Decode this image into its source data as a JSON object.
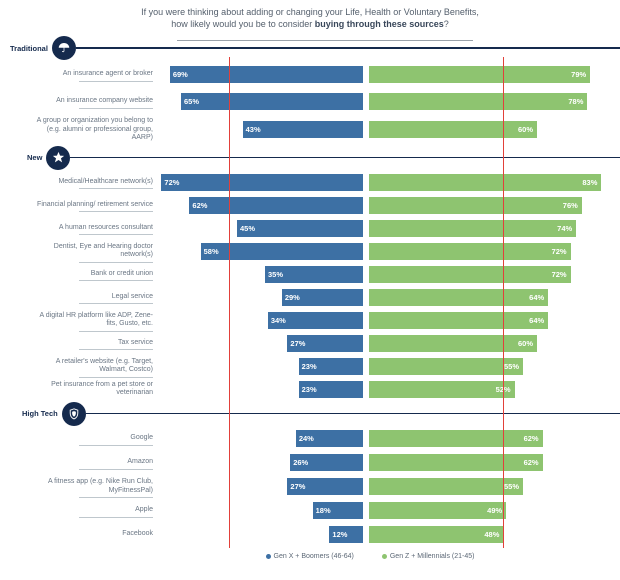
{
  "title": {
    "line1": "If you were thinking about adding or changing your Life, Health or Voluntary Benefits,",
    "line2_prefix": "how likely would you be to consider ",
    "line2_bold": "buying through these sources",
    "line2_suffix": "?"
  },
  "colors": {
    "genx_blue": "#3d70a4",
    "genz_green": "#8ec470",
    "navy": "#152a4d",
    "red_reference": "#e2403a",
    "label_gray": "#6a7684",
    "divider_gray": "#bfc7cd"
  },
  "legend": [
    {
      "label": "Gen X  +  Boomers (46-64)",
      "color": "#3d70a4"
    },
    {
      "label": "Gen Z  +  Millennials (21-45)",
      "color": "#8ec470"
    }
  ],
  "sections": [
    {
      "name": "Traditional",
      "icon": "umbrella-icon",
      "rows": [
        {
          "label": "An insurance agent or broker",
          "genx": 69,
          "genz": 79
        },
        {
          "label": "An insurance company website",
          "genx": 65,
          "genz": 78
        },
        {
          "label": "A group or organization you belong to (e.g. alumni or professional group, AARP)",
          "genx": 43,
          "genz": 60
        }
      ]
    },
    {
      "name": "New",
      "icon": "star-icon",
      "rows": [
        {
          "label": "Medical/Healthcare network(s)",
          "genx": 72,
          "genz": 83
        },
        {
          "label": "Financial planning/ retirement service",
          "genx": 62,
          "genz": 76
        },
        {
          "label": "A human resources consultant",
          "genx": 45,
          "genz": 74
        },
        {
          "label": "Dentist, Eye and Hearing doctor network(s)",
          "genx": 58,
          "genz": 72
        },
        {
          "label": "Bank or credit union",
          "genx": 35,
          "genz": 72
        },
        {
          "label": "Legal service",
          "genx": 29,
          "genz": 64
        },
        {
          "label": "A digital HR platform like ADP, Zene-fits, Gusto, etc.",
          "genx": 34,
          "genz": 64
        },
        {
          "label": "Tax service",
          "genx": 27,
          "genz": 60
        },
        {
          "label": "A retailer's website (e.g. Target, Walmart, Costco)",
          "genx": 23,
          "genz": 55
        },
        {
          "label": "Pet insurance from a pet store or veterinarian",
          "genx": 23,
          "genz": 52
        }
      ]
    },
    {
      "name": "High Tech",
      "icon": "shield-icon",
      "rows": [
        {
          "label": "Google",
          "genx": 24,
          "genz": 62
        },
        {
          "label": "Amazon",
          "genx": 26,
          "genz": 62
        },
        {
          "label": "A fitness app (e.g. Nike Run Club, MyFitnessPal)",
          "genx": 27,
          "genz": 55
        },
        {
          "label": "Apple",
          "genx": 18,
          "genz": 49
        },
        {
          "label": "Facebook",
          "genx": 12,
          "genz": 48
        }
      ]
    }
  ],
  "chart_data": {
    "type": "bar",
    "orientation": "horizontal-diverging",
    "title": "If you were thinking about adding or changing your Life, Health or Voluntary Benefits, how likely would you be to consider buying through these sources?",
    "value_format": "percent",
    "xlim": [
      0,
      100
    ],
    "reference_line_pct": 48,
    "legend_position": "bottom",
    "categories": [
      "An insurance agent or broker",
      "An insurance company website",
      "A group or organization you belong to (e.g. alumni or professional group, AARP)",
      "Medical/Healthcare network(s)",
      "Financial planning/ retirement service",
      "A human resources consultant",
      "Dentist, Eye and Hearing doctor network(s)",
      "Bank or credit union",
      "Legal service",
      "A digital HR platform like ADP, Zene-fits, Gusto, etc.",
      "Tax service",
      "A retailer's website (e.g. Target, Walmart, Costco)",
      "Pet insurance from a pet store or veterinarian",
      "Google",
      "Amazon",
      "A fitness app (e.g. Nike Run Club, MyFitnessPal)",
      "Apple",
      "Facebook"
    ],
    "category_groups": [
      {
        "name": "Traditional",
        "indices": [
          0,
          1,
          2
        ]
      },
      {
        "name": "New",
        "indices": [
          3,
          4,
          5,
          6,
          7,
          8,
          9,
          10,
          11,
          12
        ]
      },
      {
        "name": "High Tech",
        "indices": [
          13,
          14,
          15,
          16,
          17
        ]
      }
    ],
    "series": [
      {
        "name": "Gen X + Boomers (46-64)",
        "color": "#3d70a4",
        "values": [
          69,
          65,
          43,
          72,
          62,
          45,
          58,
          35,
          29,
          34,
          27,
          23,
          23,
          24,
          26,
          27,
          18,
          12
        ]
      },
      {
        "name": "Gen Z + Millennials (21-45)",
        "color": "#8ec470",
        "values": [
          79,
          78,
          60,
          83,
          76,
          74,
          72,
          72,
          64,
          64,
          60,
          55,
          52,
          62,
          62,
          55,
          49,
          48
        ]
      }
    ]
  }
}
